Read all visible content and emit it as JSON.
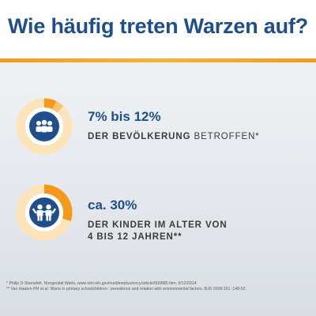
{
  "header": {
    "title": "Wie häufig treten Warzen auf?"
  },
  "colors": {
    "title": "#1f4e8c",
    "accent": "#f39a1d",
    "ring_track": "#fde3b8",
    "ring_fill": "#f39a1d",
    "icon_circle": "#1f4e8c"
  },
  "chart_data": [
    {
      "type": "pie",
      "percent_low": 7,
      "percent_high": 12,
      "percent_label": "7% bis 12%",
      "description_bold": "DER BEVÖLKERUNG",
      "description_light": " BETROFFEN*",
      "icon": "group-of-people-icon"
    },
    {
      "type": "pie",
      "percent": 30,
      "percent_label": "ca. 30%",
      "description_line1": "DER KINDER IM ALTER VON",
      "description_line2": "4 BIS 12 JAHREN**",
      "icon": "two-children-icon"
    }
  ],
  "footnotes": [
    "* Philip D Shenefelt, Nongenital Warts, www.nlm.nih.gov/medlineplus/ency/article/000885.htm, 9/12/2014",
    "** Van Haaten FM et.al. Warts in primary schoolchildren : prevalence and relation with environmental factors. BJD 2009:161 :148-52."
  ]
}
